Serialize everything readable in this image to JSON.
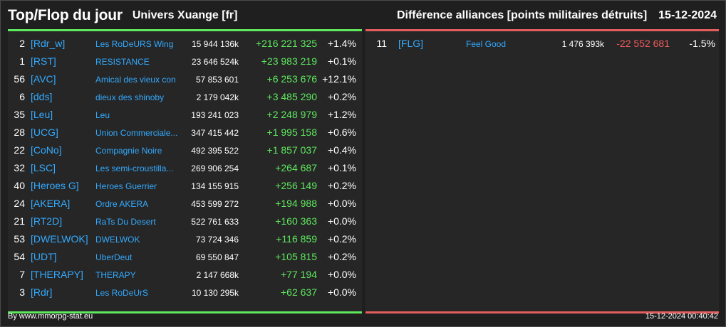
{
  "header": {
    "title": "Top/Flop du jour",
    "universe": "Univers Xuange [fr]",
    "metric": "Différence alliances [points militaires détruits]",
    "date": "15-12-2024"
  },
  "top_rows": [
    {
      "rank": "2",
      "tag": "[Rdr_w]",
      "name": "Les RoDeURS Wing",
      "points": "15 944 136k",
      "diff": "+216 221 325",
      "pct": "+1.4%"
    },
    {
      "rank": "1",
      "tag": "[RST]",
      "name": "RESISTANCE",
      "points": "23 646 524k",
      "diff": "+23 983 219",
      "pct": "+0.1%"
    },
    {
      "rank": "56",
      "tag": "[AVC]",
      "name": "Amical des vieux con",
      "points": "57 853 601",
      "diff": "+6 253 676",
      "pct": "+12.1%"
    },
    {
      "rank": "6",
      "tag": "[dds]",
      "name": "dieux des shinoby",
      "points": "2 179 042k",
      "diff": "+3 485 290",
      "pct": "+0.2%"
    },
    {
      "rank": "35",
      "tag": "[Leu]",
      "name": "Leu",
      "points": "193 241 023",
      "diff": "+2 248 979",
      "pct": "+1.2%"
    },
    {
      "rank": "28",
      "tag": "[UCG]",
      "name": "Union Commerciale...",
      "points": "347 415 442",
      "diff": "+1 995 158",
      "pct": "+0.6%"
    },
    {
      "rank": "22",
      "tag": "[CoNo]",
      "name": "Compagnie Noire",
      "points": "492 395 522",
      "diff": "+1 857 037",
      "pct": "+0.4%"
    },
    {
      "rank": "32",
      "tag": "[LSC]",
      "name": "Les semi-croustilla...",
      "points": "269 906 254",
      "diff": "+264 687",
      "pct": "+0.1%"
    },
    {
      "rank": "40",
      "tag": "[Heroes G]",
      "name": "Heroes Guerrier",
      "points": "134 155 915",
      "diff": "+256 149",
      "pct": "+0.2%"
    },
    {
      "rank": "24",
      "tag": "[AKERA]",
      "name": "Ordre AKERA",
      "points": "453 599 272",
      "diff": "+194 988",
      "pct": "+0.0%"
    },
    {
      "rank": "21",
      "tag": "[RT2D]",
      "name": "RaTs Du Desert",
      "points": "522 761 633",
      "diff": "+160 363",
      "pct": "+0.0%"
    },
    {
      "rank": "53",
      "tag": "[DWELWOK]",
      "name": "DWELWOK",
      "points": "73 724 346",
      "diff": "+116 859",
      "pct": "+0.2%"
    },
    {
      "rank": "54",
      "tag": "[UDT]",
      "name": "UberDeut",
      "points": "69 550 847",
      "diff": "+105 815",
      "pct": "+0.2%"
    },
    {
      "rank": "7",
      "tag": "[THERAPY]",
      "name": "THERAPY",
      "points": "2 147 668k",
      "diff": "+77 194",
      "pct": "+0.0%"
    },
    {
      "rank": "3",
      "tag": "[Rdr]",
      "name": "Les RoDeUrS",
      "points": "10 130 295k",
      "diff": "+62 637",
      "pct": "+0.0%"
    }
  ],
  "flop_rows": [
    {
      "rank": "11",
      "tag": "[FLG]",
      "name": "Feel Good",
      "points": "1 476 393k",
      "diff": "-22 552 681",
      "pct": "-1.5%"
    }
  ],
  "footer": {
    "credit": "By www.mmorpg-stat.eu",
    "timestamp": "15-12-2024 00:40:42"
  },
  "colors": {
    "positive": "#5ee85e",
    "negative": "#f05a5a",
    "link": "#33aaff"
  }
}
